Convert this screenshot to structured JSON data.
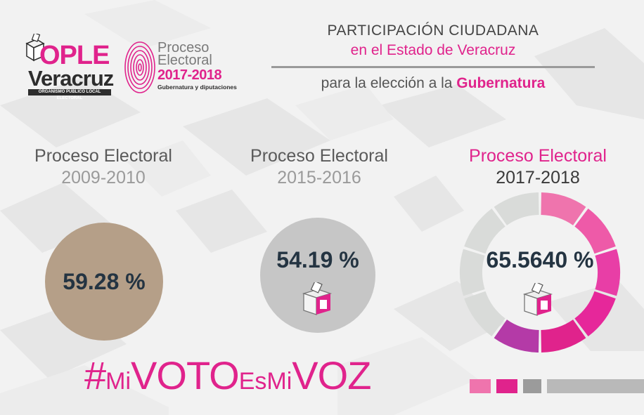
{
  "header": {
    "ople": {
      "title": "OPLE",
      "subtitle": "Veracruz",
      "tagline": "ORGANISMO PÚBLICO LOCAL ELECTORAL"
    },
    "proceso_logo": {
      "line1": "Proceso",
      "line2": "Electoral",
      "years": "2017-2018",
      "subtitle": "Gubernatura y diputaciones"
    },
    "title_line1": "PARTICIPACIÓN CIUDADANA",
    "title_line2": "en el Estado de Veracruz",
    "title_line3_prefix": "para la elección a la",
    "title_line3_highlight": "Gubernatura"
  },
  "columns": [
    {
      "label": "Proceso Electoral",
      "period": "2009-2010",
      "value": "59.28 %",
      "color": "#b59f88"
    },
    {
      "label": "Proceso Electoral",
      "period": "2015-2016",
      "value": "54.19 %",
      "color": "#c6c6c6"
    },
    {
      "label": "Proceso Electoral",
      "period": "2017-2018",
      "value": "65.5640 %",
      "participation": 65.564
    }
  ],
  "hashtag": {
    "hash": "#",
    "mi1": "Mi",
    "voto": "VOTO",
    "es": "Es",
    "mi2": "Mi",
    "voz": "VOZ"
  },
  "colors": {
    "accent": "#e0238c",
    "dark_text": "#243442",
    "ring_gray": "#d9dbd9",
    "ring_pinks": [
      "#ef74ad",
      "#ee5aa8",
      "#e83ea6",
      "#e6279a",
      "#e0238c",
      "#b43aa7"
    ],
    "bar": [
      "#ef74ad",
      "#e0238c",
      "#9b9b9b",
      "#b9b9b9"
    ]
  },
  "icons": [
    "ballot-box-icon",
    "fingerprint-icon"
  ]
}
